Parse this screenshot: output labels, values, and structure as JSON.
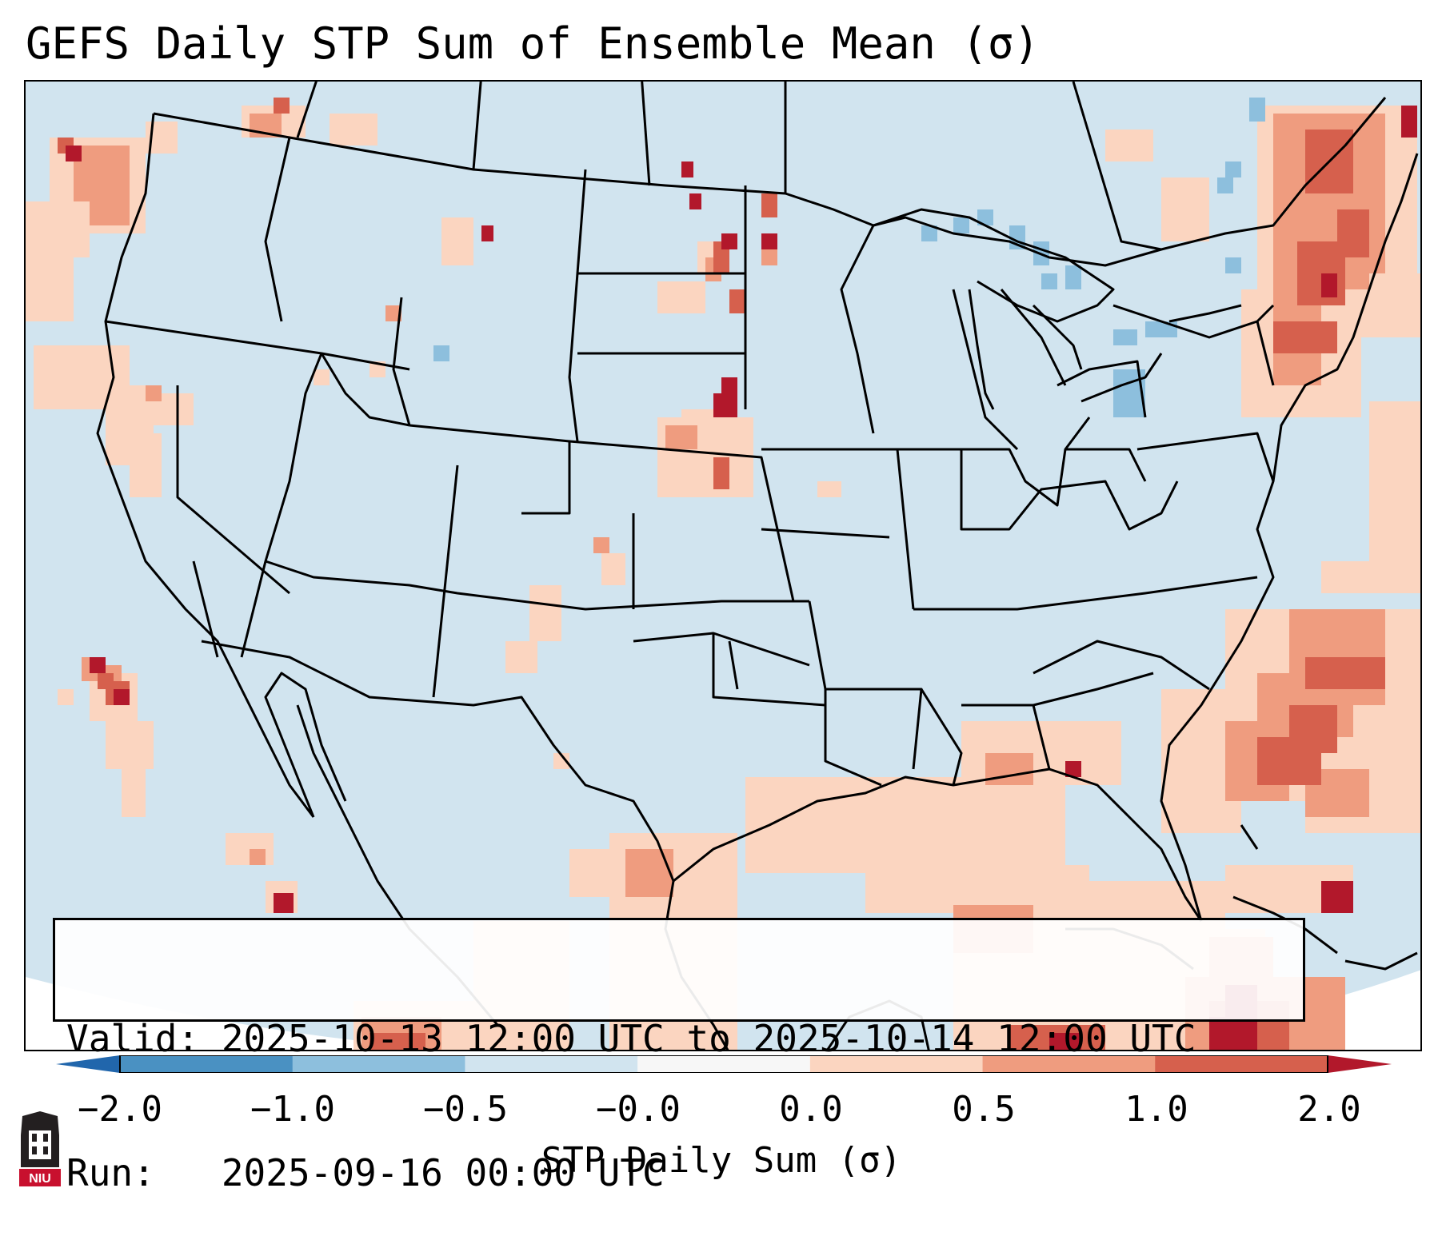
{
  "title": "GEFS Daily STP Sum of Ensemble Mean (σ)",
  "map": {
    "region": "CONUS",
    "ocean_color": "#d1e4ef",
    "base_land_color": "#d1e4ef",
    "boundary_color": "#000000"
  },
  "valid_box": {
    "line1": "Valid: 2025-10-13 12:00 UTC to 2025-10-14 12:00 UTC",
    "line2": "Run:   2025-09-16 00:00 UTC"
  },
  "colorbar": {
    "label": "STP Daily Sum (σ)",
    "tick_labels": [
      "−2.0",
      "−1.0",
      "−0.5",
      "−0.0",
      "0.0",
      "0.5",
      "1.0",
      "2.0"
    ],
    "bins": [
      {
        "from": -2.0,
        "to": -1.0,
        "color": "#4a91c2"
      },
      {
        "from": -1.0,
        "to": -0.5,
        "color": "#8dbfdd"
      },
      {
        "from": -0.5,
        "to": -0.0,
        "color": "#d1e4ef"
      },
      {
        "from": -0.0,
        "to": 0.0,
        "color": "#f7f7f7"
      },
      {
        "from": 0.0,
        "to": 0.5,
        "color": "#fbd5c0"
      },
      {
        "from": 0.5,
        "to": 1.0,
        "color": "#ef9c7f"
      },
      {
        "from": 1.0,
        "to": 2.0,
        "color": "#d6604d"
      }
    ],
    "extend_low_color": "#2166ac",
    "extend_high_color": "#b2182b"
  },
  "logo": {
    "text": "NIU",
    "color": "#c8102e"
  }
}
